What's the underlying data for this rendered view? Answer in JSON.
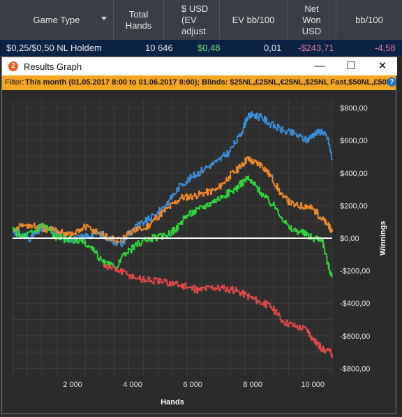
{
  "columns": {
    "game_type": "Game Type",
    "total_hands": [
      "Total",
      "Hands"
    ],
    "usd_ev": [
      "$ USD",
      "(EV",
      "adjust"
    ],
    "ev_bb": "EV bb/100",
    "net_won": [
      "Net",
      "Won",
      "USD"
    ],
    "bb100": "bb/100"
  },
  "row": {
    "game": "$0,25/$0,50 NL Holdem",
    "hands": "10 646",
    "usd_ev": "$0,48",
    "ev_bb": "0,01",
    "net_won": "-$243,71",
    "bb100": "-4,58"
  },
  "window": {
    "icon_label": "2",
    "title": "Results Graph",
    "minimize": "—",
    "maximize": "☐",
    "close": "✕"
  },
  "filter": {
    "label": "Filter:",
    "text": "This month (01.05.2017 8:00 to 01.06.2017 8:00); Blinds: $25NL,£25NL,€25NL,$25NL Fast,$50NL,£50NL,€5",
    "help_icon": "?"
  },
  "colors": {
    "blue": "#3a8fd9",
    "orange": "#f08a2a",
    "green": "#2fd93a",
    "red": "#e04848",
    "zero_line": "#ffffff"
  },
  "chart_data": {
    "type": "line",
    "xlabel": "Hands",
    "ylabel": "Winnings",
    "xlim": [
      0,
      10646
    ],
    "ylim": [
      -850,
      850
    ],
    "x_ticks": [
      2000,
      4000,
      6000,
      8000,
      10000
    ],
    "x_tick_labels": [
      "2 000",
      "4 000",
      "6 000",
      "8 000",
      "10 000"
    ],
    "y_ticks": [
      800,
      600,
      400,
      200,
      0,
      -200,
      -400,
      -600,
      -800
    ],
    "y_tick_labels": [
      "$800,00",
      "$600,00",
      "$400,00",
      "$200,00",
      "$0,00",
      "-$200,00",
      "-$400,00",
      "-$600,00",
      "-$800,00"
    ],
    "grid": true,
    "series": [
      {
        "color": "#3a8fd9",
        "x": [
          0,
          300,
          600,
          900,
          1200,
          1600,
          2000,
          2400,
          2800,
          3200,
          3600,
          4000,
          4400,
          4800,
          5200,
          5600,
          6000,
          6400,
          6800,
          7200,
          7600,
          7800,
          8000,
          8300,
          8600,
          9000,
          9400,
          9800,
          10000,
          10300,
          10500,
          10646
        ],
        "y": [
          40,
          20,
          0,
          50,
          60,
          20,
          -10,
          10,
          30,
          0,
          -40,
          60,
          100,
          150,
          230,
          330,
          380,
          430,
          470,
          530,
          640,
          740,
          760,
          740,
          700,
          660,
          640,
          600,
          640,
          660,
          610,
          480
        ]
      },
      {
        "color": "#f08a2a",
        "x": [
          0,
          400,
          800,
          1200,
          1600,
          2000,
          2400,
          2800,
          3200,
          3600,
          4000,
          4400,
          4800,
          5200,
          5600,
          6000,
          6400,
          6800,
          7200,
          7600,
          7800,
          8000,
          8300,
          8600,
          9000,
          9400,
          9800,
          10000,
          10300,
          10500,
          10646
        ],
        "y": [
          60,
          80,
          70,
          50,
          40,
          20,
          70,
          40,
          0,
          -20,
          50,
          60,
          130,
          190,
          250,
          260,
          280,
          300,
          380,
          440,
          490,
          470,
          450,
          380,
          250,
          200,
          200,
          180,
          120,
          80,
          40
        ]
      },
      {
        "color": "#2fd93a",
        "x": [
          0,
          300,
          700,
          1000,
          1400,
          1800,
          2200,
          2600,
          3000,
          3400,
          3800,
          4200,
          4600,
          5000,
          5400,
          5800,
          6200,
          6600,
          7000,
          7400,
          7800,
          8100,
          8400,
          8800,
          9200,
          9600,
          10000,
          10300,
          10500,
          10646
        ],
        "y": [
          50,
          10,
          40,
          90,
          10,
          -10,
          -20,
          -60,
          -150,
          -180,
          -90,
          -30,
          0,
          10,
          50,
          140,
          180,
          220,
          260,
          300,
          370,
          320,
          250,
          180,
          60,
          40,
          0,
          0,
          -160,
          -240
        ]
      },
      {
        "color": "#e04848",
        "x": [
          3000,
          3400,
          3800,
          4200,
          4600,
          5000,
          5400,
          5800,
          6200,
          6600,
          7000,
          7400,
          7800,
          8200,
          8600,
          9000,
          9400,
          9800,
          10000,
          10300,
          10646
        ],
        "y": [
          -170,
          -190,
          -220,
          -250,
          -260,
          -270,
          -280,
          -300,
          -320,
          -300,
          -310,
          -320,
          -350,
          -390,
          -420,
          -510,
          -540,
          -560,
          -620,
          -680,
          -710
        ]
      }
    ]
  }
}
